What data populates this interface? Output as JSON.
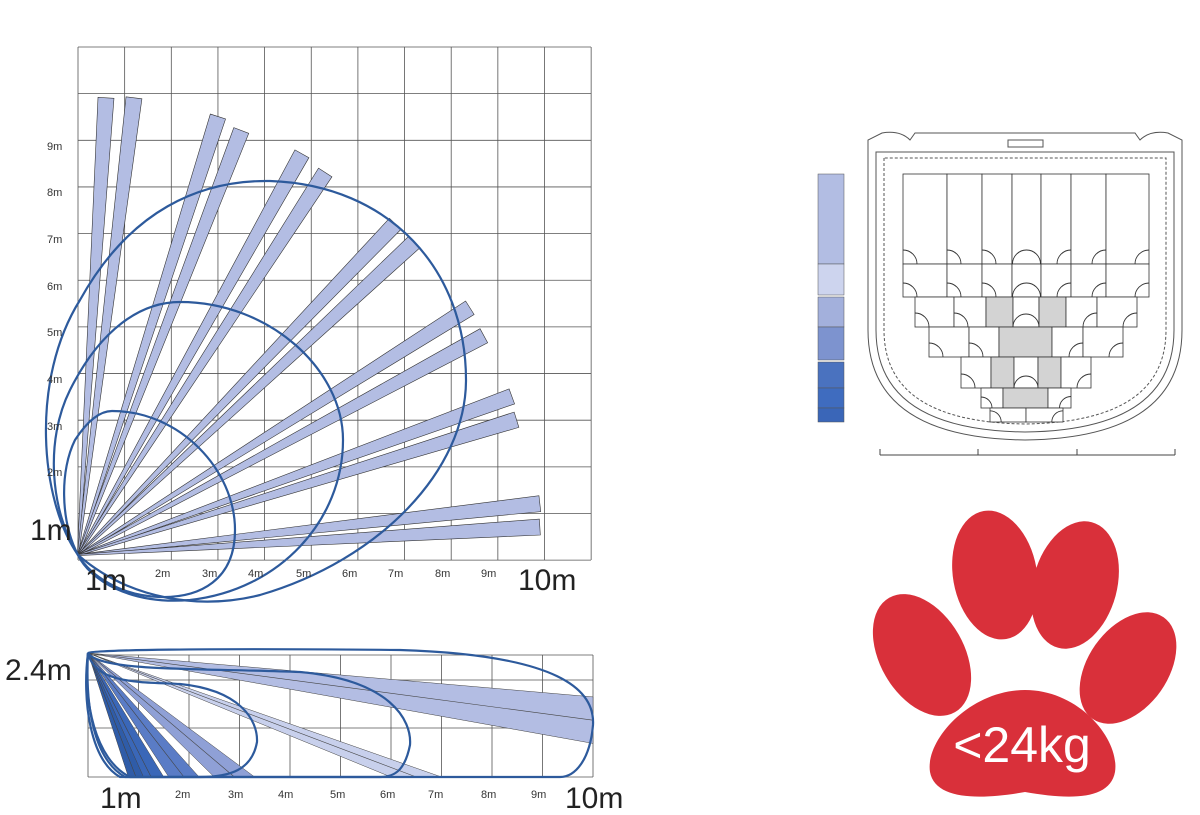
{
  "chart_data": [
    {
      "type": "diagram",
      "view": "top",
      "x_unit": "m",
      "y_unit": "m",
      "xlim": [
        0,
        11
      ],
      "ylim": [
        0,
        11
      ],
      "x_tick_labels": [
        "1m",
        "2m",
        "3m",
        "4m",
        "5m",
        "6m",
        "7m",
        "8m",
        "9m",
        "10m"
      ],
      "y_tick_labels": [
        "1m",
        "2m",
        "3m",
        "4m",
        "5m",
        "6m",
        "7m",
        "8m",
        "9m"
      ],
      "beam_color": "#b3bde3",
      "contour_color": "#2d5a9c",
      "beams_far_end": [
        [
          0.6,
          9.8
        ],
        [
          1.2,
          9.8
        ],
        [
          3.0,
          9.4
        ],
        [
          3.5,
          9.1
        ],
        [
          4.8,
          8.6
        ],
        [
          5.3,
          8.2
        ],
        [
          6.8,
          7.1
        ],
        [
          7.2,
          6.7
        ],
        [
          8.4,
          5.3
        ],
        [
          8.7,
          4.7
        ],
        [
          9.3,
          3.4
        ],
        [
          9.4,
          2.9
        ],
        [
          9.9,
          1.1
        ],
        [
          9.9,
          0.6
        ]
      ]
    },
    {
      "type": "diagram",
      "view": "side",
      "x_unit": "m",
      "mount_height_label": "2.4m",
      "x_tick_labels": [
        "1m",
        "2m",
        "3m",
        "4m",
        "5m",
        "6m",
        "7m",
        "8m",
        "9m",
        "10m"
      ],
      "beams": [
        {
          "edge_a": [
            10,
            1.55
          ],
          "edge_b": [
            10,
            0.65
          ],
          "color": "#b3bde3"
        },
        {
          "edge_a": [
            6.0,
            0
          ],
          "edge_b": [
            7.0,
            0
          ],
          "color": "#c8d0ec"
        },
        {
          "edge_a": [
            2.5,
            0
          ],
          "edge_b": [
            3.3,
            0
          ],
          "color": "#8fa0d6"
        },
        {
          "edge_a": [
            1.6,
            0
          ],
          "edge_b": [
            2.2,
            0
          ],
          "color": "#5a7cc6"
        },
        {
          "edge_a": [
            1.0,
            0
          ],
          "edge_b": [
            1.5,
            0
          ],
          "color": "#3a67b8"
        },
        {
          "edge_a": [
            0.8,
            0
          ],
          "edge_b": [
            1.1,
            0
          ],
          "color": "#2f5ca8"
        }
      ]
    }
  ],
  "lens_scale_colors": [
    "#b2bde3",
    "#cdd4ee",
    "#a3b0dc",
    "#7d93cf",
    "#4a72bf",
    "#3f6cbf",
    "#3a66b8"
  ],
  "pet_immunity": {
    "label": "<24kg",
    "color": "#d9303a",
    "icon": "paw-icon"
  }
}
